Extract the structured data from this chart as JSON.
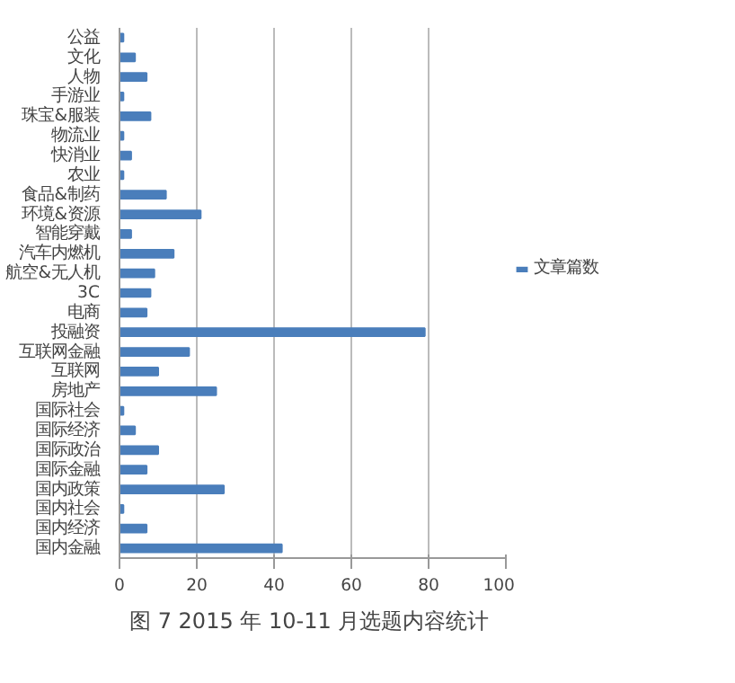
{
  "chart_data": {
    "type": "bar",
    "orientation": "horizontal",
    "categories": [
      "公益",
      "文化",
      "人物",
      "手游业",
      "珠宝&服装",
      "物流业",
      "快消业",
      "农业",
      "食品&制药",
      "环境&资源",
      "智能穿戴",
      "汽车内燃机",
      "航空&无人机",
      "3C",
      "电商",
      "投融资",
      "互联网金融",
      "互联网",
      "房地产",
      "国际社会",
      "国际经济",
      "国际政治",
      "国际金融",
      "国内政策",
      "国内社会",
      "国内经济",
      "国内金融"
    ],
    "series": [
      {
        "name": "文章篇数",
        "color": "#4a7ebb",
        "values": [
          1,
          4,
          7,
          1,
          8,
          1,
          3,
          1,
          12,
          21,
          3,
          14,
          9,
          8,
          7,
          79,
          18,
          10,
          25,
          1,
          4,
          10,
          7,
          27,
          1,
          7,
          42
        ]
      }
    ],
    "xlim": [
      0,
      100
    ],
    "xticks": [
      0,
      20,
      40,
      60,
      80,
      100
    ],
    "grid": "x",
    "legend": "right",
    "annotations": [
      "图 7  2015 年 10-11 月选题内容统计"
    ]
  }
}
